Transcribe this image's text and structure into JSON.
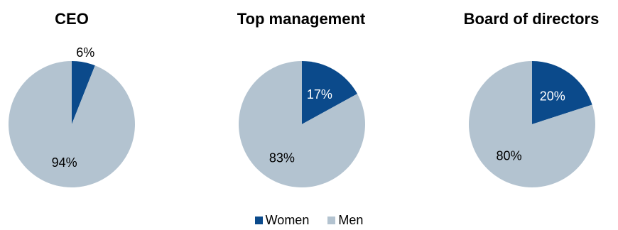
{
  "chart_data": [
    {
      "type": "pie",
      "title": "CEO",
      "slices": [
        {
          "label": "Women",
          "value": 6,
          "text": "6%"
        },
        {
          "label": "Men",
          "value": 94,
          "text": "94%"
        }
      ]
    },
    {
      "type": "pie",
      "title": "Top management",
      "slices": [
        {
          "label": "Women",
          "value": 17,
          "text": "17%"
        },
        {
          "label": "Men",
          "value": 83,
          "text": "83%"
        }
      ]
    },
    {
      "type": "pie",
      "title": "Board of directors",
      "slices": [
        {
          "label": "Women",
          "value": 20,
          "text": "20%"
        },
        {
          "label": "Men",
          "value": 80,
          "text": "80%"
        }
      ]
    }
  ],
  "legend": {
    "items": [
      {
        "label": "Women",
        "color": "#0b4a8b"
      },
      {
        "label": "Men",
        "color": "#b3c3d0"
      }
    ],
    "placement": "bottom-center"
  }
}
